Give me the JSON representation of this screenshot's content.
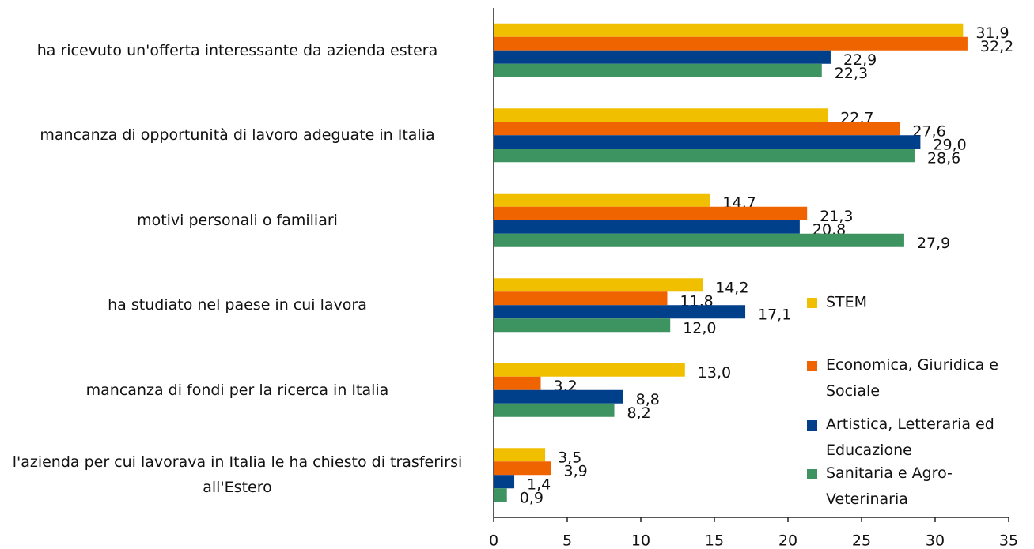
{
  "chart_data": {
    "type": "barh",
    "categories": [
      "ha ricevuto un'offerta interessante da azienda estera",
      "mancanza di opportunità di lavoro adeguate in Italia",
      "motivi personali o familiari",
      "ha studiato nel paese in cui lavora",
      "mancanza di fondi per la ricerca in Italia",
      "l'azienda per cui lavorava in Italia le ha chiesto di trasferirsi all'Estero"
    ],
    "series": [
      {
        "name": "STEM",
        "color": "#f0c000",
        "values": [
          31.9,
          22.7,
          14.7,
          14.2,
          13.0,
          3.5
        ],
        "value_labels": [
          "31,9",
          "22,7",
          "14,7",
          "14,2",
          "13,0",
          "3,5"
        ]
      },
      {
        "name": "Economica, Giuridica e Sociale",
        "color": "#f06400",
        "values": [
          32.2,
          27.6,
          21.3,
          11.8,
          3.2,
          3.9
        ],
        "value_labels": [
          "32,2",
          "27,6",
          "21,3",
          "11,8",
          "3,2",
          "3,9"
        ]
      },
      {
        "name": "Artistica, Letteraria ed Educazione",
        "color": "#003f8a",
        "values": [
          22.9,
          29.0,
          20.8,
          17.1,
          8.8,
          1.4
        ],
        "value_labels": [
          "22,9",
          "29,0",
          "20,8",
          "17,1",
          "8,8",
          "1,4"
        ]
      },
      {
        "name": "Sanitaria e Agro-Veterinaria",
        "color": "#3d9460",
        "values": [
          22.3,
          28.6,
          27.9,
          12.0,
          8.2,
          0.9
        ],
        "value_labels": [
          "22,3",
          "28,6",
          "27,9",
          "12,0",
          "8,2",
          "0,9"
        ]
      }
    ],
    "xlim": [
      0,
      35
    ],
    "xticks": [
      0,
      5,
      10,
      15,
      20,
      25,
      30,
      35
    ],
    "legend": "right"
  }
}
